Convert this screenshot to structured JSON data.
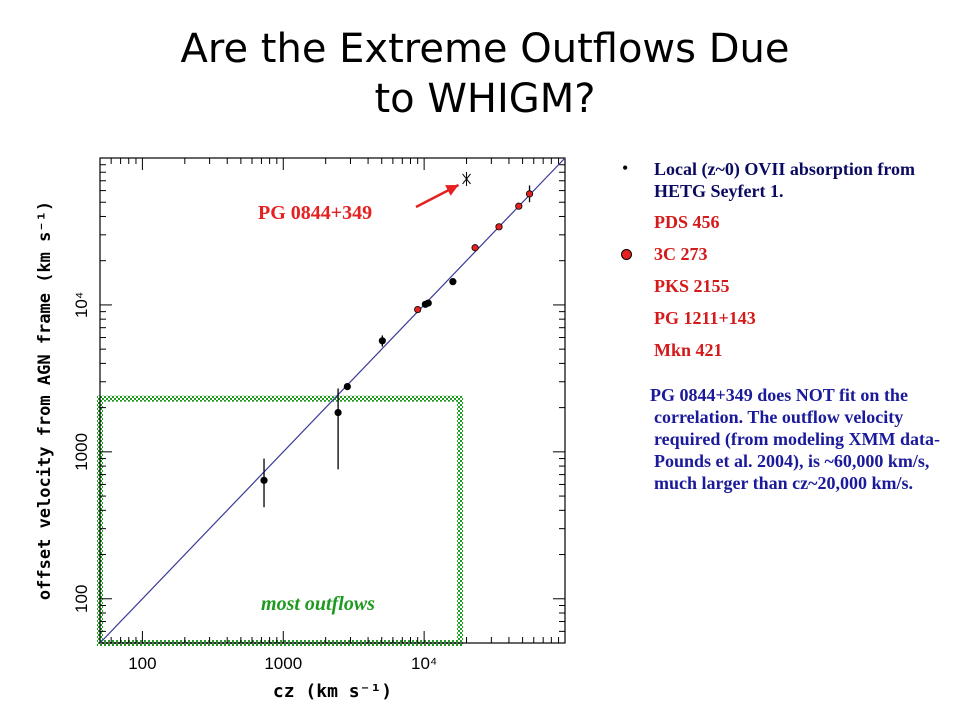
{
  "title": {
    "line1": "Are the Extreme Outflows Due",
    "line2": "to WHIGM?"
  },
  "bullets": {
    "main": "Local (z~0) OVII absorption from HETG Seyfert 1.",
    "objects": [
      {
        "label": "PDS 456",
        "marker": false
      },
      {
        "label": "3C 273",
        "marker": true
      },
      {
        "label": "PKS 2155",
        "marker": false
      },
      {
        "label": "PG 1211+143",
        "marker": false
      },
      {
        "label": "Mkn 421",
        "marker": false
      }
    ],
    "note": "PG 0844+349 does NOT fit on the correlation. The outflow velocity required (from modeling XMM data-Pounds et al. 2004), is ~60,000 km/s, much larger than cz~20,000 km/s."
  },
  "chart_data": {
    "type": "scatter",
    "xlabel": "cz (km s⁻¹)",
    "ylabel": "offset velocity from AGN frame (km s⁻¹)",
    "x_scale": "log",
    "y_scale": "log",
    "xlim": [
      50,
      100000
    ],
    "ylim": [
      50,
      100000
    ],
    "x_ticks": [
      {
        "value": 100,
        "label": "100"
      },
      {
        "value": 1000,
        "label": "1000"
      },
      {
        "value": 10000,
        "label": "10⁴"
      }
    ],
    "y_ticks": [
      {
        "value": 100,
        "label": "100"
      },
      {
        "value": 1000,
        "label": "1000"
      },
      {
        "value": 10000,
        "label": "10⁴"
      }
    ],
    "fit_line": {
      "x": [
        50,
        100000
      ],
      "y": [
        50,
        100000
      ]
    },
    "series": [
      {
        "color": "#000000",
        "points": [
          {
            "x": 730,
            "y": 640,
            "ylo": 420,
            "yhi": 900
          },
          {
            "x": 2450,
            "y": 1850,
            "ylo": 760,
            "yhi": 2700
          },
          {
            "x": 2850,
            "y": 2780
          },
          {
            "x": 5050,
            "y": 5700,
            "ylo": 5200,
            "yhi": 6200
          },
          {
            "x": 10200,
            "y": 10100
          },
          {
            "x": 10700,
            "y": 10300
          },
          {
            "x": 16000,
            "y": 14400
          }
        ]
      },
      {
        "color": "#e52121",
        "points": [
          {
            "x": 9000,
            "y": 9300
          },
          {
            "x": 23000,
            "y": 24500
          },
          {
            "x": 34000,
            "y": 34000
          },
          {
            "x": 47000,
            "y": 47000
          },
          {
            "x": 56000,
            "y": 57000,
            "ylo": 50000,
            "yhi": 65000
          }
        ]
      },
      {
        "color": "#000000",
        "marker": "x",
        "points": [
          {
            "x": 20000,
            "y": 72000
          }
        ]
      }
    ],
    "annotations": [
      {
        "text": "PG 0844+349",
        "color": "#e52121",
        "target": {
          "x": 20000,
          "y": 72000
        }
      },
      {
        "text": "most outflows",
        "color": "#1e9a1e"
      }
    ],
    "region": {
      "label": "most outflows",
      "x": [
        50,
        18000
      ],
      "y": [
        50,
        2300
      ],
      "color": "#1e9a1e"
    }
  }
}
